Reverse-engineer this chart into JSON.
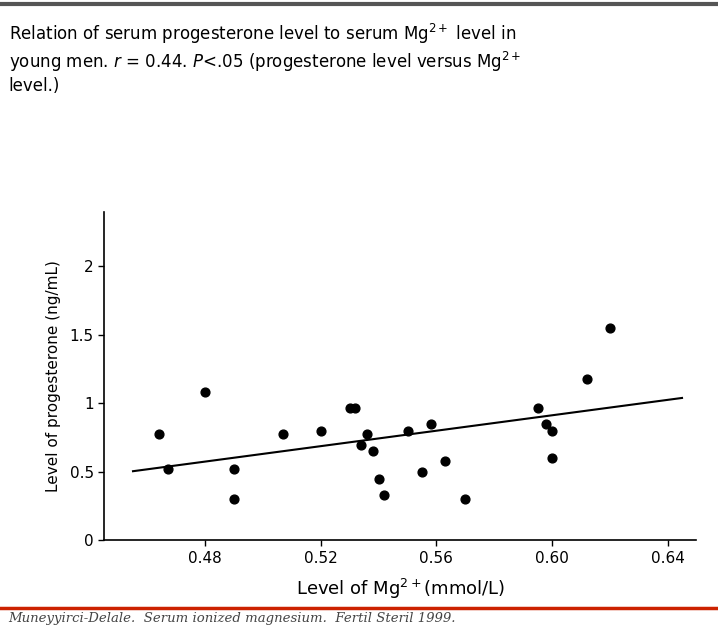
{
  "x_data": [
    0.464,
    0.467,
    0.48,
    0.49,
    0.49,
    0.507,
    0.52,
    0.53,
    0.532,
    0.534,
    0.536,
    0.538,
    0.54,
    0.542,
    0.55,
    0.555,
    0.558,
    0.563,
    0.57,
    0.595,
    0.598,
    0.6,
    0.6,
    0.612,
    0.62
  ],
  "y_data": [
    0.78,
    0.52,
    1.08,
    0.52,
    0.3,
    0.78,
    0.8,
    0.97,
    0.97,
    0.7,
    0.78,
    0.65,
    0.45,
    0.33,
    0.8,
    0.5,
    0.85,
    0.58,
    0.3,
    0.97,
    0.85,
    0.8,
    0.6,
    1.18,
    1.55
  ],
  "trendline_x": [
    0.455,
    0.645
  ],
  "trendline_y": [
    0.505,
    1.04
  ],
  "xlim": [
    0.445,
    0.65
  ],
  "ylim": [
    0,
    2.4
  ],
  "xticks": [
    0.48,
    0.52,
    0.56,
    0.6,
    0.64
  ],
  "yticks": [
    0,
    0.5,
    1.0,
    1.5,
    2.0
  ],
  "xlabel": "Level of Mg$^{2+}$(mmol/L)",
  "ylabel": "Level of progesterone (ng/mL)",
  "dot_color": "#000000",
  "dot_size": 40,
  "line_color": "#000000",
  "line_width": 1.5,
  "bg_color": "#ffffff",
  "caption": "Muneyyirci-Delale.  Serum ionized magnesium.  Fertil Steril 1999.",
  "top_bar_color": "#555555",
  "bottom_bar_color": "#cc2200",
  "title_fontsize": 12,
  "xlabel_fontsize": 13,
  "ylabel_fontsize": 11,
  "tick_fontsize": 11,
  "caption_fontsize": 9.5
}
